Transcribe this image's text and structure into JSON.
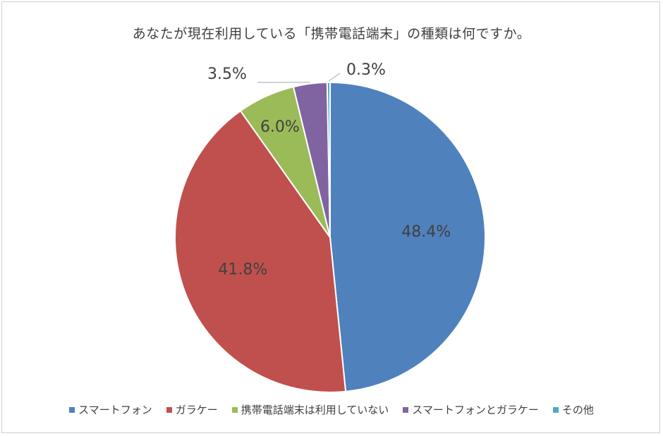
{
  "chart_data": {
    "type": "pie",
    "title": "あなたが現在利用している「携帯電話端末」の種類は何ですか。",
    "categories": [
      "スマートフォン",
      "ガラケー",
      "携帯電話端末は利用していない",
      "スマートフォンとガラケー",
      "その他"
    ],
    "values": [
      48.4,
      41.8,
      6.0,
      3.5,
      0.3
    ],
    "data_labels": [
      "48.4%",
      "41.8%",
      "6.0%",
      "3.5%",
      "0.3%"
    ],
    "colors": [
      "#4F81BD",
      "#C0504D",
      "#9BBB59",
      "#8064A2",
      "#4BACC6"
    ],
    "start_angle_deg": 0,
    "direction": "clockwise",
    "legend_position": "bottom"
  }
}
